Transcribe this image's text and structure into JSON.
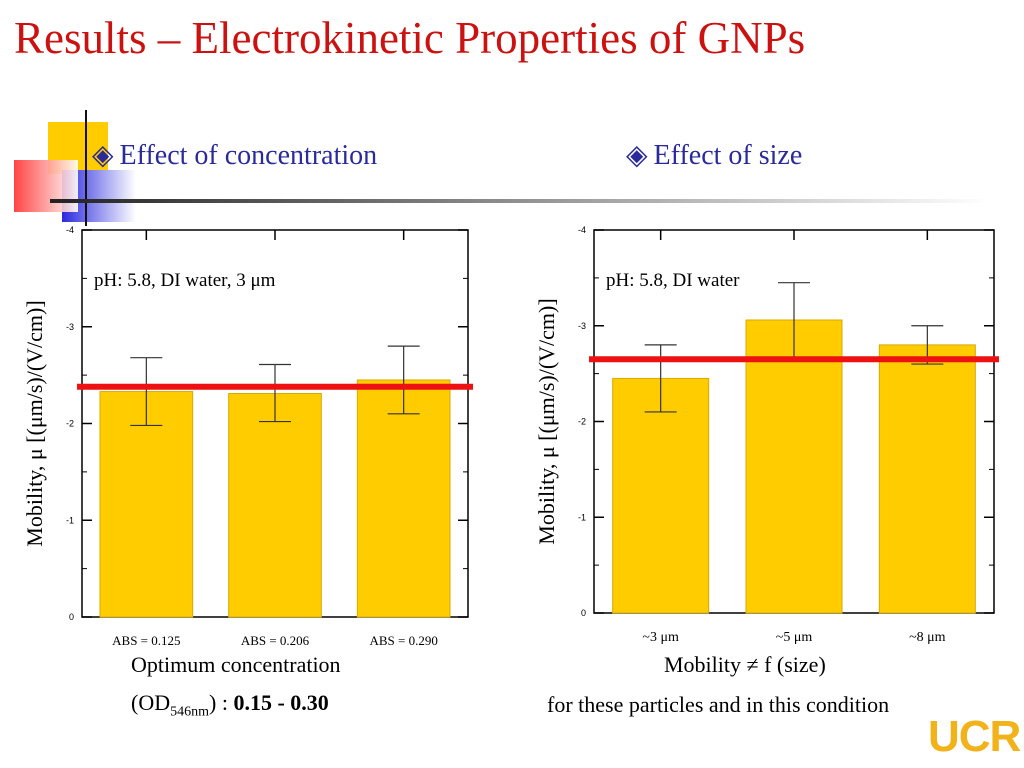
{
  "slide": {
    "title": "Results – Electrokinetic Properties of GNPs",
    "bullet_left": "Effect of concentration",
    "bullet_right": "Effect of size",
    "bullet_icon": "diamond-bullet-icon",
    "caption_left_line1": "Optimum concentration",
    "caption_left_od": "(OD",
    "caption_left_sub": "546nm",
    "caption_left_colon": ") : ",
    "caption_left_bold": "0.15 - 0.30",
    "caption_right_line1": "Mobility ≠ f (size)",
    "caption_right_line2": "for these particles and in this condition",
    "logo": "UCR",
    "colors": {
      "title": "#cc1111",
      "bullet": "#2a2a9a",
      "bar": "#ffcc00",
      "ref_line": "#ee1111",
      "logo": "#f2b21a"
    }
  },
  "chart_data": [
    {
      "type": "bar",
      "ylabel": "Mobility, μ [(μm/s)/(V/cm)]",
      "annotation": "pH: 5.8, DI water, 3 μm",
      "categories": [
        "ABS = 0.125",
        "ABS = 0.206",
        "ABS = 0.290"
      ],
      "values": [
        -2.33,
        -2.31,
        -2.45
      ],
      "error_low": [
        -1.98,
        -2.02,
        -2.1
      ],
      "error_high": [
        -2.68,
        -2.61,
        -2.8
      ],
      "reference_line": -2.38,
      "ylim": [
        0,
        -4
      ],
      "yticks": [
        "0",
        "-1",
        "-2",
        "-3",
        "-4"
      ],
      "ytick_values": [
        0,
        -1,
        -2,
        -3,
        -4
      ]
    },
    {
      "type": "bar",
      "ylabel": "Mobility, μ [(μm/s)/(V/cm)]",
      "annotation": "pH: 5.8, DI water",
      "categories": [
        "~3 μm",
        "~5 μm",
        "~8 μm"
      ],
      "values": [
        -2.45,
        -3.06,
        -2.8
      ],
      "error_low": [
        -2.1,
        -2.65,
        -2.6
      ],
      "error_high": [
        -2.8,
        -3.45,
        -3.0
      ],
      "reference_line": -2.65,
      "ylim": [
        0,
        -4
      ],
      "yticks": [
        "0",
        "-1",
        "-2",
        "-3",
        "-4"
      ],
      "ytick_values": [
        0,
        -1,
        -2,
        -3,
        -4
      ]
    }
  ]
}
